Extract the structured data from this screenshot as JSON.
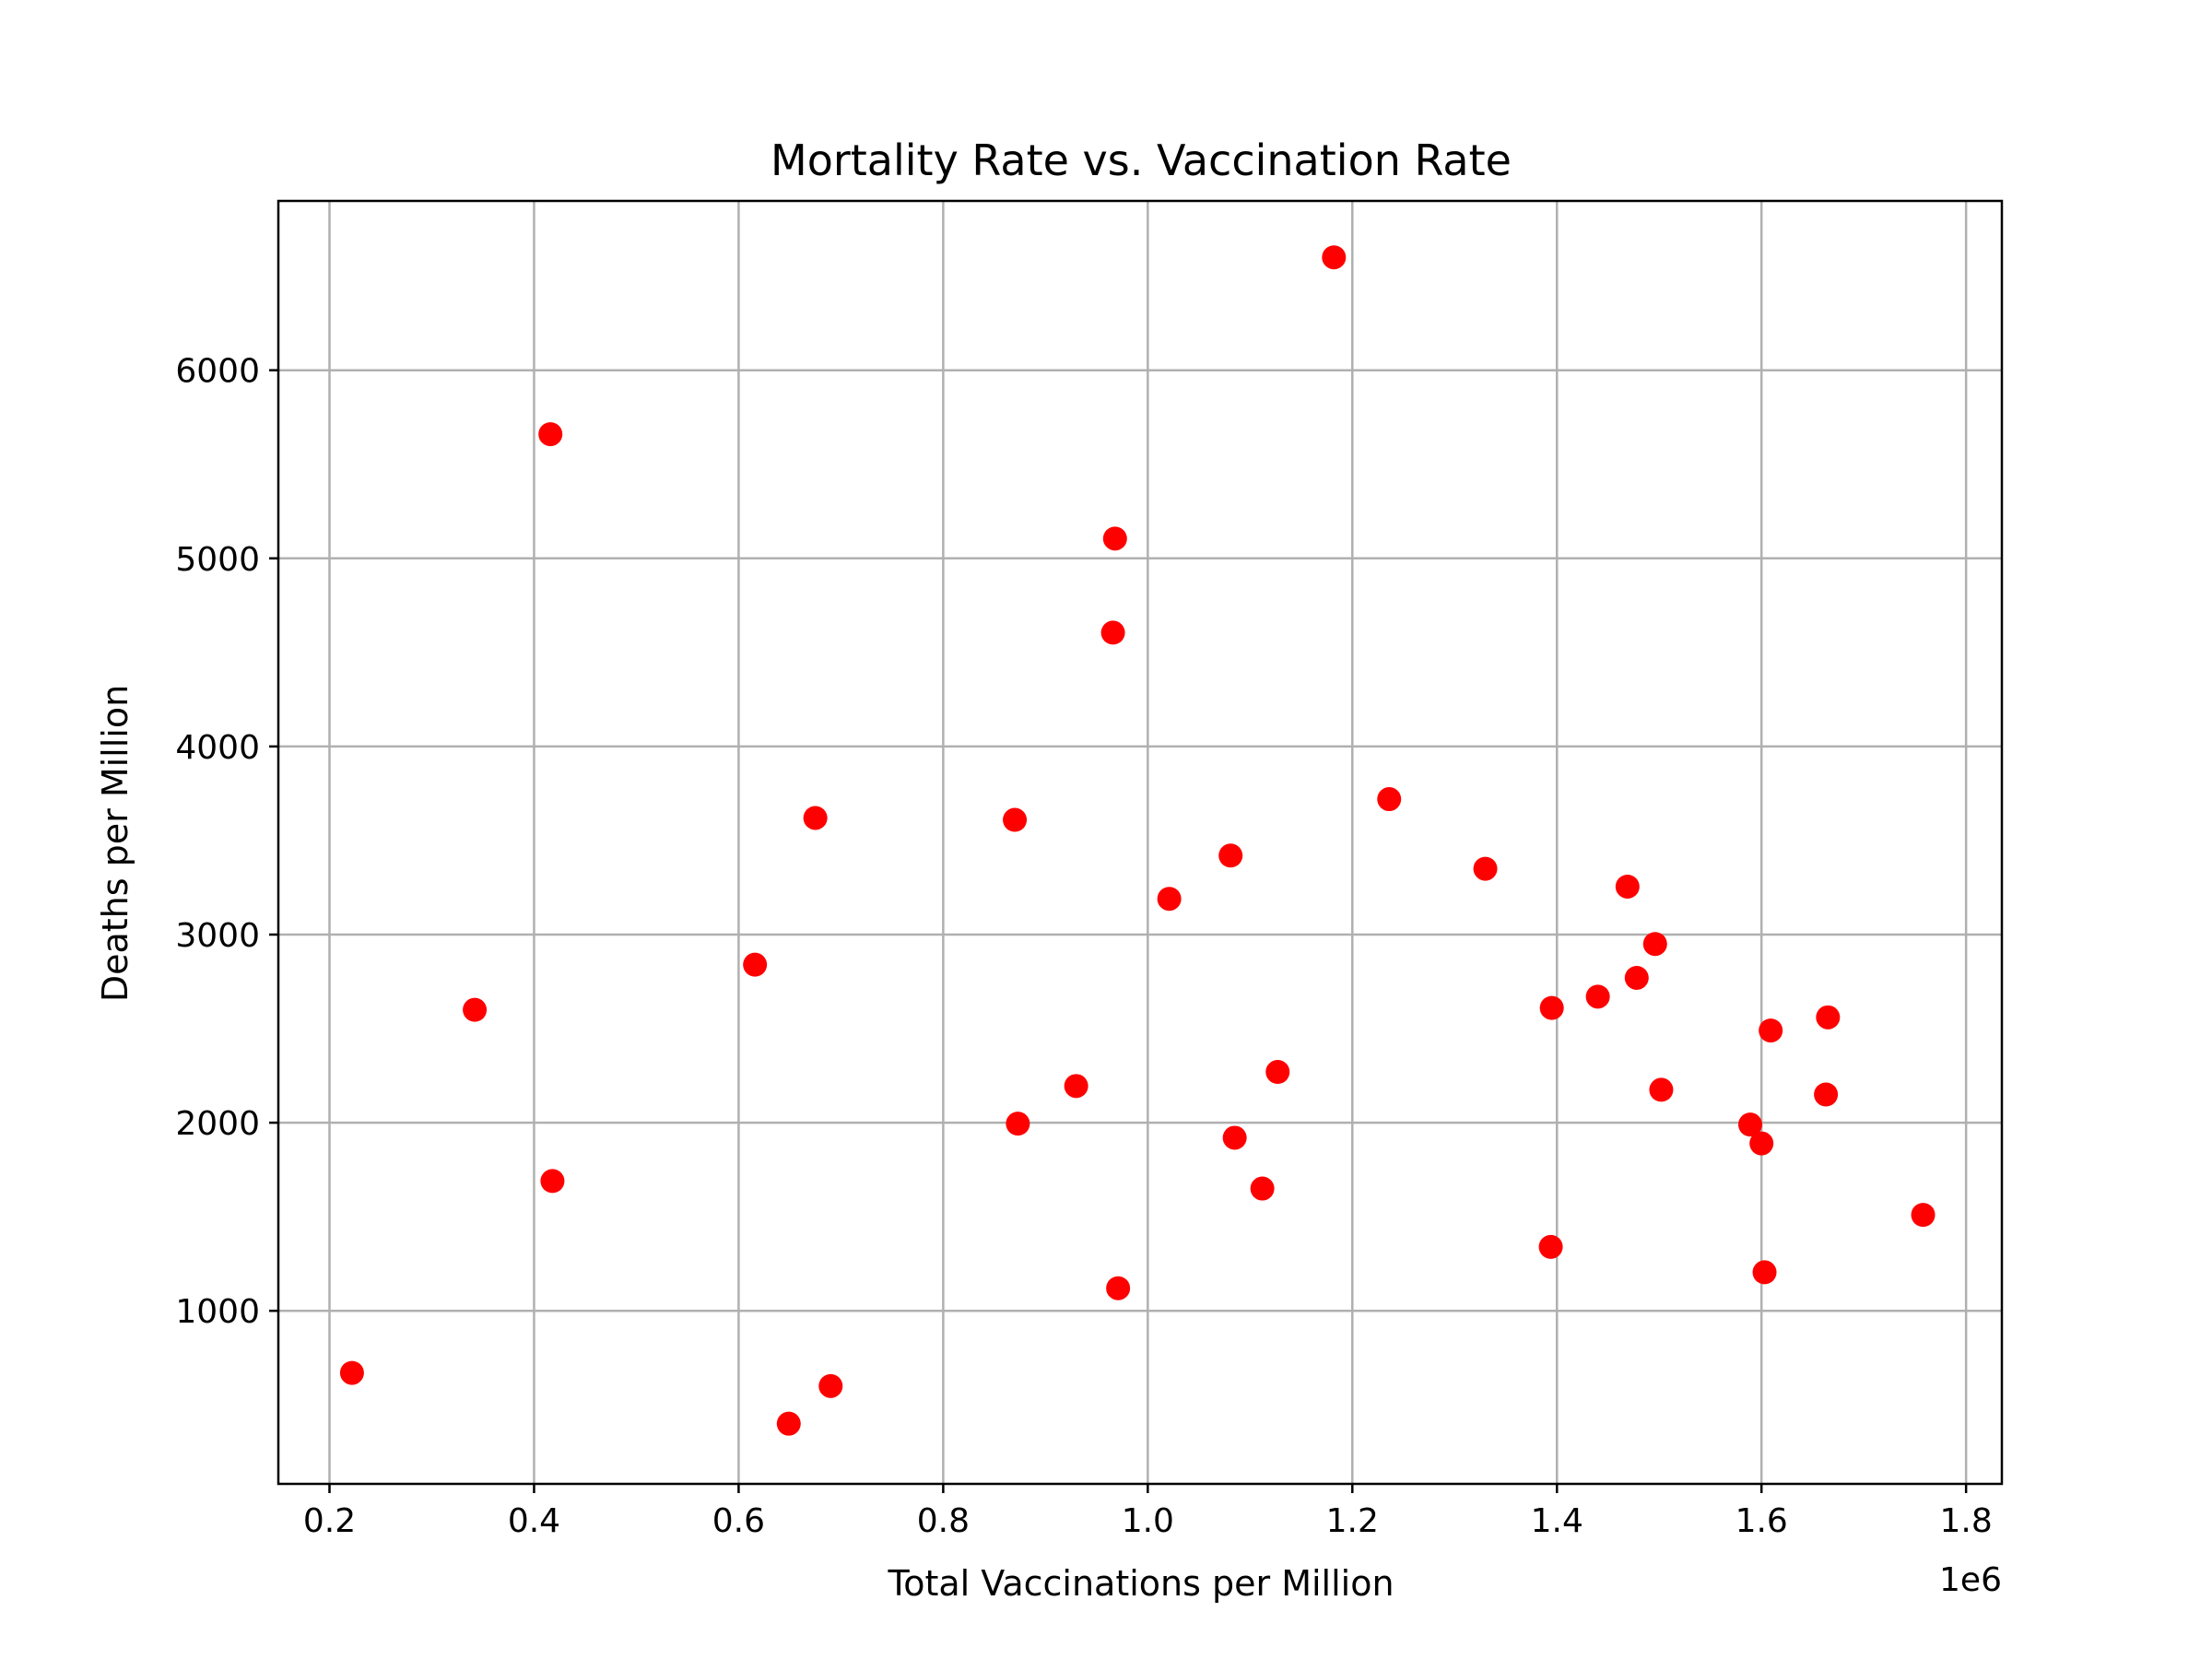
{
  "chart_data": {
    "type": "scatter",
    "title": "Mortality Rate vs. Vaccination Rate",
    "xlabel": "Total Vaccinations per Million",
    "ylabel": "Deaths per Million",
    "x_offset_label": "1e6",
    "xlim": [
      150000,
      1835000
    ],
    "ylim": [
      80,
      6900
    ],
    "x_ticks": [
      200000,
      400000,
      600000,
      800000,
      1000000,
      1200000,
      1400000,
      1600000,
      1800000
    ],
    "x_tick_labels": [
      "0.2",
      "0.4",
      "0.6",
      "0.8",
      "1.0",
      "1.2",
      "1.4",
      "1.6",
      "1.8"
    ],
    "y_ticks": [
      1000,
      2000,
      3000,
      4000,
      5000,
      6000
    ],
    "y_tick_labels": [
      "1000",
      "2000",
      "3000",
      "4000",
      "5000",
      "6000"
    ],
    "grid": true,
    "marker_color": "#ff0000",
    "points": [
      {
        "x": 222000,
        "y": 670
      },
      {
        "x": 342000,
        "y": 2600
      },
      {
        "x": 416000,
        "y": 5660
      },
      {
        "x": 418000,
        "y": 1690
      },
      {
        "x": 616000,
        "y": 2840
      },
      {
        "x": 649000,
        "y": 400
      },
      {
        "x": 675000,
        "y": 3620
      },
      {
        "x": 690000,
        "y": 600
      },
      {
        "x": 870000,
        "y": 3610
      },
      {
        "x": 873000,
        "y": 1995
      },
      {
        "x": 930000,
        "y": 2195
      },
      {
        "x": 966000,
        "y": 4605
      },
      {
        "x": 968000,
        "y": 5105
      },
      {
        "x": 971000,
        "y": 1120
      },
      {
        "x": 1021000,
        "y": 3190
      },
      {
        "x": 1081000,
        "y": 3420
      },
      {
        "x": 1085000,
        "y": 1920
      },
      {
        "x": 1112000,
        "y": 1650
      },
      {
        "x": 1127000,
        "y": 2270
      },
      {
        "x": 1182000,
        "y": 6600
      },
      {
        "x": 1236000,
        "y": 3720
      },
      {
        "x": 1330000,
        "y": 3350
      },
      {
        "x": 1394000,
        "y": 1340
      },
      {
        "x": 1395000,
        "y": 2610
      },
      {
        "x": 1440000,
        "y": 2670
      },
      {
        "x": 1469000,
        "y": 3255
      },
      {
        "x": 1478000,
        "y": 2770
      },
      {
        "x": 1496000,
        "y": 2950
      },
      {
        "x": 1502000,
        "y": 2175
      },
      {
        "x": 1589000,
        "y": 1990
      },
      {
        "x": 1600000,
        "y": 1890
      },
      {
        "x": 1603000,
        "y": 1205
      },
      {
        "x": 1609000,
        "y": 2490
      },
      {
        "x": 1663000,
        "y": 2150
      },
      {
        "x": 1665000,
        "y": 2560
      },
      {
        "x": 1758000,
        "y": 1510
      }
    ]
  }
}
